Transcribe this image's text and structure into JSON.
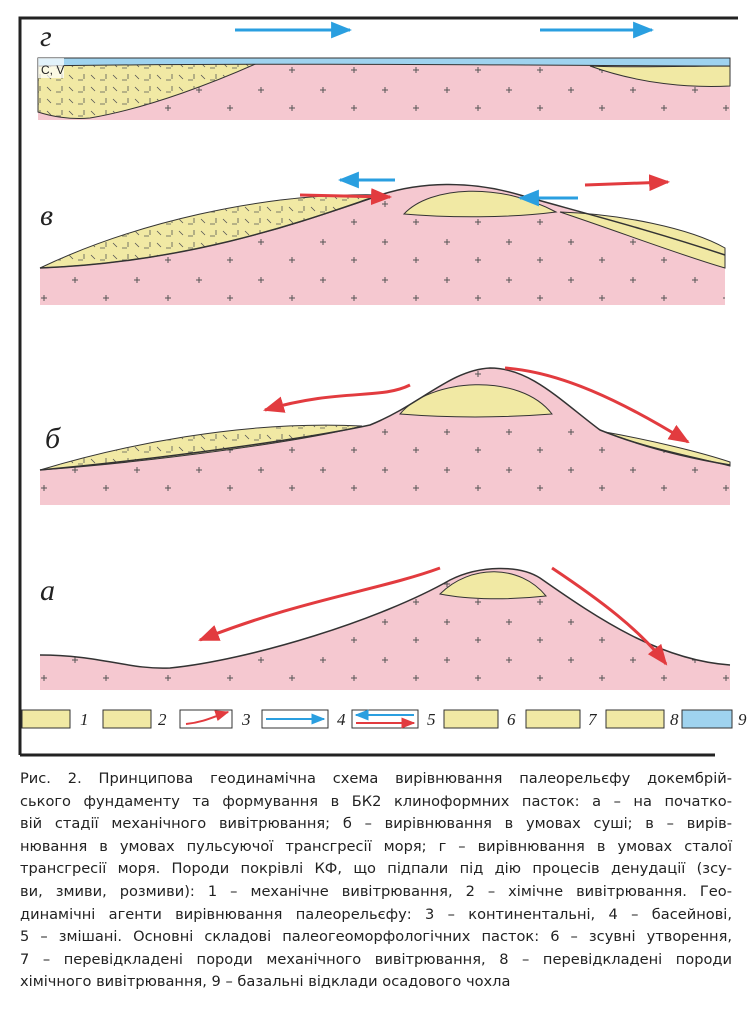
{
  "panels": [
    {
      "label": "г"
    },
    {
      "label": "в"
    },
    {
      "label": "б"
    },
    {
      "label": "а"
    }
  ],
  "cv_label": "C, V",
  "legend": [
    {
      "number": "1"
    },
    {
      "number": "2"
    },
    {
      "number": "3"
    },
    {
      "number": "4"
    },
    {
      "number": "5"
    },
    {
      "number": "6"
    },
    {
      "number": "7"
    },
    {
      "number": "8"
    },
    {
      "number": "9"
    }
  ],
  "caption": [
    "Рис. 2. Принципова геодинамічна схема вирівнювання палеорельєфу докембрій-",
    "ського фундаменту та формування в БК2 клиноформних пасток: а – на початко-",
    "вій стадії механічного вивітрювання; б – вирівнювання в умовах суші; в – вирів-",
    "нювання в умовах пульсуючої трансгресії моря; г – вирівнювання в умовах сталої",
    "трансгресії моря. Породи покрівлі КФ, що підпали під дію процесів денудації (зсу-",
    "ви, змиви, розмиви): 1 – механічне  вивітрювання, 2 – хімічне вивітрювання. Гео-",
    "динамічні агенти вирівнювання палеорельєфу: 3 – континентальні, 4 – басейнові,",
    "5 – змішані. Основні складові палеогеоморфологічних пасток: 6 – зсувні утворення,",
    "7 – перевідкладені породи механічного вивітрювання, 8 – перевідкладені породи",
    "хімічного вивітрювання, 9 – базальні відклади осадового чохла"
  ]
}
